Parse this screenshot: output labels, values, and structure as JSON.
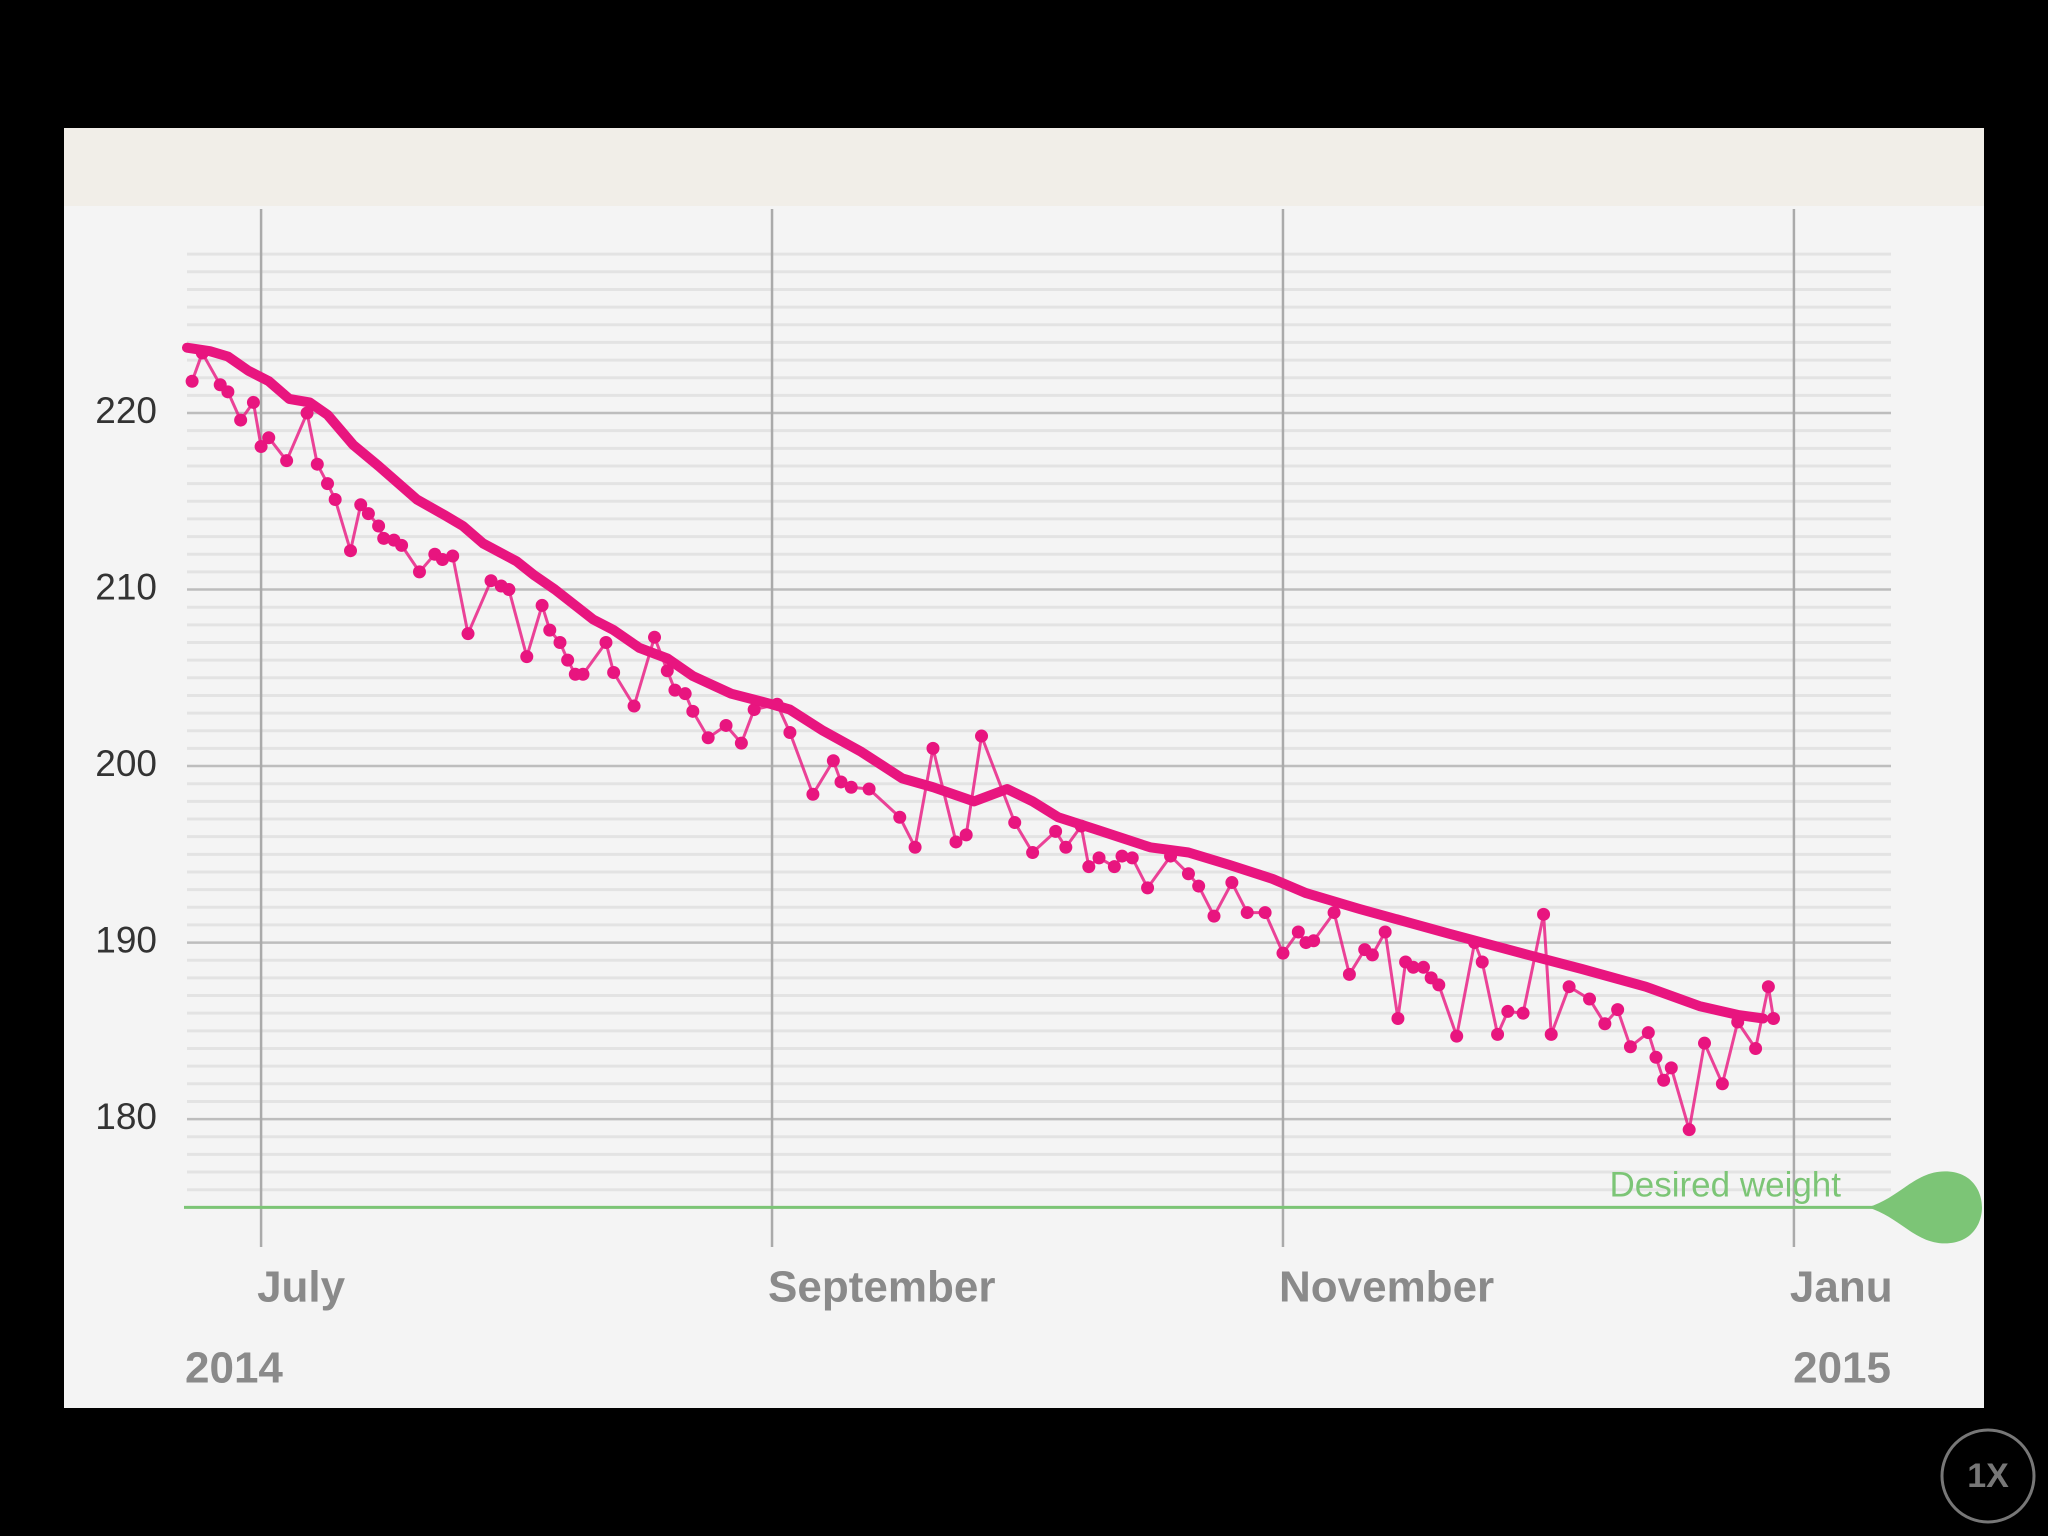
{
  "chart_data": {
    "type": "line",
    "ylim": [
      174,
      230
    ],
    "yticks": [
      180,
      190,
      200,
      210,
      220
    ],
    "minor_yticks": [
      175,
      176,
      177,
      178,
      179,
      181,
      182,
      183,
      184,
      185,
      186,
      187,
      188,
      189,
      191,
      192,
      193,
      194,
      195,
      196,
      197,
      198,
      199,
      201,
      202,
      203,
      204,
      205,
      206,
      207,
      208,
      209,
      211,
      212,
      213,
      214,
      215,
      216,
      217,
      218,
      219,
      221,
      222,
      223,
      224,
      225,
      226,
      227,
      228,
      229
    ],
    "xlim": [
      6.71,
      13.38
    ],
    "xticks": [
      {
        "value": 7,
        "label": "July"
      },
      {
        "value": 9,
        "label": "September"
      },
      {
        "value": 11,
        "label": "November"
      },
      {
        "value": 13,
        "label": "Janu"
      }
    ],
    "year_labels": [
      "2014",
      "2015"
    ],
    "grid": true,
    "target": {
      "value": 175,
      "label": "Desired weight",
      "color": "#7cc576"
    },
    "series": [
      {
        "color": "#e8157f",
        "markers": true,
        "x": [
          6.73,
          6.77,
          6.84,
          6.87,
          6.92,
          6.97,
          7.0,
          7.03,
          7.1,
          7.18,
          7.22,
          7.26,
          7.29,
          7.35,
          7.39,
          7.42,
          7.46,
          7.48,
          7.52,
          7.55,
          7.62,
          7.68,
          7.71,
          7.75,
          7.81,
          7.9,
          7.94,
          7.97,
          8.04,
          8.1,
          8.13,
          8.17,
          8.2,
          8.23,
          8.26,
          8.35,
          8.38,
          8.46,
          8.54,
          8.59,
          8.62,
          8.66,
          8.69,
          8.75,
          8.82,
          8.88,
          8.93,
          9.02,
          9.07,
          9.16,
          9.24,
          9.27,
          9.31,
          9.38,
          9.5,
          9.56,
          9.63,
          9.72,
          9.76,
          9.82,
          9.95,
          10.02,
          10.11,
          10.15,
          10.21,
          10.24,
          10.28,
          10.34,
          10.37,
          10.41,
          10.47,
          10.56,
          10.63,
          10.67,
          10.73,
          10.8,
          10.86,
          10.93,
          11.0,
          11.06,
          11.09,
          11.12,
          11.2,
          11.26,
          11.32,
          11.35,
          11.4,
          11.45,
          11.48,
          11.51,
          11.55,
          11.58,
          11.61,
          11.68,
          11.75,
          11.78,
          11.84,
          11.88,
          11.94,
          12.02,
          12.05,
          12.12,
          12.2,
          12.26,
          12.31,
          12.36,
          12.43,
          12.46,
          12.49,
          12.52,
          12.59,
          12.65,
          12.72,
          12.78,
          12.85,
          12.9,
          12.92
        ],
        "values": [
          221.8,
          223.4,
          221.6,
          221.2,
          219.6,
          220.6,
          218.1,
          218.6,
          217.3,
          220.0,
          217.1,
          216.0,
          215.1,
          212.2,
          214.8,
          214.3,
          213.6,
          212.9,
          212.8,
          212.5,
          211.0,
          212.0,
          211.7,
          211.9,
          207.5,
          210.5,
          210.2,
          210.0,
          206.2,
          209.1,
          207.7,
          207.0,
          206.0,
          205.2,
          205.2,
          207.0,
          205.3,
          203.4,
          207.3,
          205.4,
          204.3,
          204.1,
          203.1,
          201.6,
          202.3,
          201.3,
          203.2,
          203.5,
          201.9,
          198.4,
          200.3,
          199.1,
          198.8,
          198.7,
          197.1,
          195.4,
          201.0,
          195.7,
          196.1,
          201.7,
          196.8,
          195.1,
          196.3,
          195.4,
          196.6,
          194.3,
          194.8,
          194.3,
          194.9,
          194.8,
          193.1,
          194.9,
          193.9,
          193.2,
          191.5,
          193.4,
          191.7,
          191.7,
          189.4,
          190.6,
          190.0,
          190.1,
          191.7,
          188.2,
          189.6,
          189.3,
          190.6,
          185.7,
          188.9,
          188.6,
          188.6,
          188.0,
          187.6,
          184.7,
          190.0,
          188.9,
          184.8,
          186.1,
          186.0,
          191.6,
          184.8,
          187.5,
          186.8,
          185.4,
          186.2,
          184.1,
          184.9,
          183.5,
          182.2,
          182.9,
          179.4,
          184.3,
          182.0,
          185.5,
          184.0,
          187.5,
          185.7
        ]
      },
      {
        "color": "#e8157f",
        "markers": false,
        "x": [
          6.71,
          6.8,
          6.87,
          6.95,
          7.03,
          7.11,
          7.19,
          7.26,
          7.36,
          7.46,
          7.61,
          7.72,
          7.79,
          7.87,
          8.0,
          8.07,
          8.15,
          8.3,
          8.38,
          8.48,
          8.59,
          8.69,
          8.84,
          9.0,
          9.07,
          9.2,
          9.35,
          9.51,
          9.63,
          9.79,
          9.92,
          10.02,
          10.12,
          10.27,
          10.48,
          10.63,
          10.79,
          10.96,
          11.09,
          11.3,
          11.45,
          11.65,
          11.96,
          12.17,
          12.42,
          12.63,
          12.78,
          12.88
        ],
        "values": [
          223.7,
          223.5,
          223.2,
          222.4,
          221.8,
          220.8,
          220.6,
          219.9,
          218.2,
          217.0,
          215.1,
          214.2,
          213.6,
          212.6,
          211.6,
          210.8,
          210.0,
          208.3,
          207.7,
          206.7,
          206.1,
          205.1,
          204.1,
          203.5,
          203.2,
          202.0,
          200.8,
          199.3,
          198.8,
          198.0,
          198.7,
          198.0,
          197.1,
          196.4,
          195.4,
          195.1,
          194.4,
          193.6,
          192.8,
          191.9,
          191.3,
          190.5,
          189.3,
          188.5,
          187.5,
          186.4,
          185.9,
          185.7
        ]
      }
    ]
  },
  "ui": {
    "zoom_label": "1X"
  }
}
